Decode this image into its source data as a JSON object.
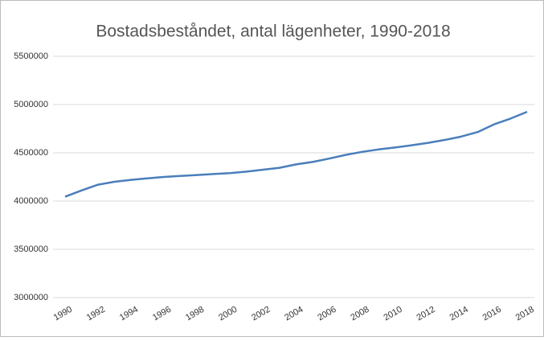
{
  "chart_data": {
    "type": "line",
    "title": "Bostadsbeståndet, antal lägenheter, 1990-2018",
    "x": [
      1990,
      1991,
      1992,
      1993,
      1994,
      1995,
      1996,
      1997,
      1998,
      1999,
      2000,
      2001,
      2002,
      2003,
      2004,
      2005,
      2006,
      2007,
      2008,
      2009,
      2010,
      2011,
      2012,
      2013,
      2014,
      2015,
      2016,
      2017,
      2018
    ],
    "series": [
      {
        "name": "Bostadsbeståndet",
        "color": "#4a7ebb",
        "values": [
          4045000,
          4110000,
          4170000,
          4200000,
          4220000,
          4235000,
          4250000,
          4260000,
          4270000,
          4280000,
          4290000,
          4305000,
          4325000,
          4345000,
          4380000,
          4405000,
          4440000,
          4478000,
          4510000,
          4535000,
          4555000,
          4578000,
          4603000,
          4633000,
          4668000,
          4715000,
          4795000,
          4855000,
          4925000
        ]
      }
    ],
    "xlim": [
      1990,
      2018
    ],
    "xticks": [
      1990,
      1992,
      1994,
      1996,
      1998,
      2000,
      2002,
      2004,
      2006,
      2008,
      2010,
      2012,
      2014,
      2016,
      2018
    ],
    "ylim": [
      3000000,
      5500000
    ],
    "yticks": [
      3000000,
      3500000,
      4000000,
      4500000,
      5000000,
      5500000
    ],
    "grid": true
  }
}
